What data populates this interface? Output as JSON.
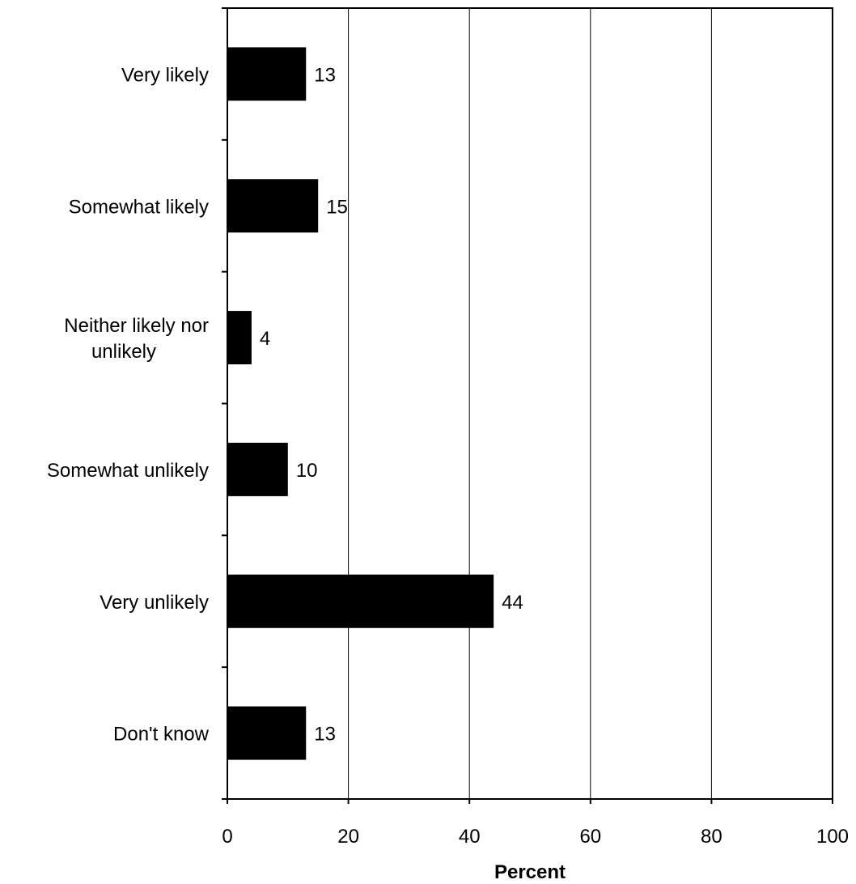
{
  "chart_data": {
    "type": "bar",
    "orientation": "horizontal",
    "categories": [
      "Very likely",
      "Somewhat likely",
      "Neither likely nor unlikely",
      "Somewhat unlikely",
      "Very unlikely",
      "Don't know"
    ],
    "category_lines": [
      [
        "Very likely"
      ],
      [
        "Somewhat likely"
      ],
      [
        "Neither likely nor",
        "unlikely"
      ],
      [
        "Somewhat unlikely"
      ],
      [
        "Very unlikely"
      ],
      [
        "Don't know"
      ]
    ],
    "values": [
      13,
      15,
      4,
      10,
      44,
      13
    ],
    "data_labels": [
      "13",
      "15",
      "4",
      "10",
      "44",
      "13"
    ],
    "title": "",
    "xlabel": "Percent",
    "ylabel": "",
    "xlim": [
      0,
      100
    ],
    "xticks": [
      0,
      20,
      40,
      60,
      80,
      100
    ],
    "xtick_labels": [
      "0",
      "20",
      "40",
      "60",
      "80",
      "100"
    ],
    "grid": "vertical",
    "legend": "none",
    "bar_color": "#000000"
  }
}
